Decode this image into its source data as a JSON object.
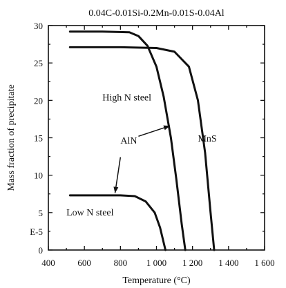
{
  "chart_data": {
    "type": "line",
    "title": "0.04C-0.01Si-0.2Mn-0.01S-0.04Al",
    "xlabel": "Temperature (°C)",
    "ylabel": "Mass fraction of precipitate",
    "y_unit_label": "E-5",
    "xlim": [
      400,
      1600
    ],
    "ylim": [
      0,
      30
    ],
    "x_ticks": [
      400,
      600,
      800,
      1000,
      1200,
      1400,
      1600
    ],
    "x_tick_labels": [
      "400",
      "600",
      "800",
      "1 000",
      "1 200",
      "1 400",
      "1 600"
    ],
    "y_ticks": [
      0,
      5,
      10,
      15,
      20,
      25,
      30
    ],
    "y_tick_labels": [
      "0",
      "5",
      "10",
      "15",
      "20",
      "25",
      "30"
    ],
    "grid": false,
    "series": [
      {
        "name": "AlN (High N steel)",
        "x": [
          520,
          700,
          850,
          900,
          950,
          1000,
          1040,
          1080,
          1110,
          1140,
          1160
        ],
        "y": [
          29.2,
          29.2,
          29.1,
          28.6,
          27.3,
          24.5,
          20.5,
          15.0,
          9.5,
          3.5,
          0
        ]
      },
      {
        "name": "MnS",
        "x": [
          520,
          800,
          1000,
          1100,
          1180,
          1230,
          1270,
          1300,
          1320
        ],
        "y": [
          27.1,
          27.1,
          27.0,
          26.5,
          24.5,
          20.0,
          13.0,
          5.0,
          0
        ]
      },
      {
        "name": "AlN (Low N steel)",
        "x": [
          520,
          800,
          880,
          940,
          990,
          1020,
          1040,
          1050
        ],
        "y": [
          7.3,
          7.3,
          7.2,
          6.5,
          5.0,
          3.0,
          1.0,
          0
        ]
      }
    ],
    "annotations": [
      {
        "text": "High N steel",
        "x": 700,
        "y": 20
      },
      {
        "text": "MnS",
        "x": 1230,
        "y": 14.5
      },
      {
        "text": "AlN",
        "x": 800,
        "y": 14.2
      },
      {
        "text": "Low N steel",
        "x": 500,
        "y": 4.6
      }
    ]
  }
}
